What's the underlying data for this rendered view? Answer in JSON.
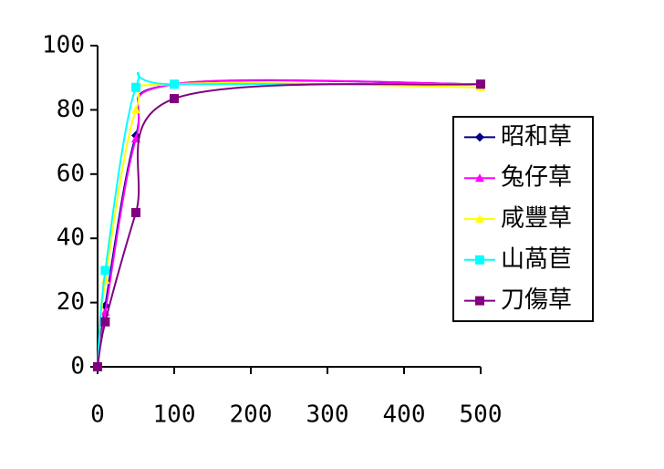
{
  "chart_data": {
    "type": "line",
    "x": [
      0,
      10,
      50,
      100,
      500
    ],
    "series": [
      {
        "name": "昭和草",
        "color": "#000080",
        "marker": "diamond",
        "values": [
          0,
          19,
          72,
          88,
          88
        ]
      },
      {
        "name": "兔仔草",
        "color": "#ff00ff",
        "marker": "triangle",
        "values": [
          0,
          17,
          71,
          88,
          88
        ]
      },
      {
        "name": "咸豐草",
        "color": "#ffff00",
        "marker": "triangle",
        "values": [
          0,
          27,
          80,
          88,
          87
        ]
      },
      {
        "name": "山萵苣",
        "color": "#00ffff",
        "marker": "square",
        "values": [
          0,
          30,
          87,
          88,
          88
        ]
      },
      {
        "name": "刀傷草",
        "color": "#800080",
        "marker": "square",
        "values": [
          0,
          14,
          48,
          83.5,
          88
        ]
      }
    ],
    "xlim": [
      0,
      500
    ],
    "xticks": [
      0,
      100,
      200,
      300,
      400,
      500
    ],
    "ylim": [
      0,
      100
    ],
    "yticks": [
      0,
      20,
      40,
      60,
      80,
      100
    ],
    "grid": false,
    "legend": "right"
  }
}
